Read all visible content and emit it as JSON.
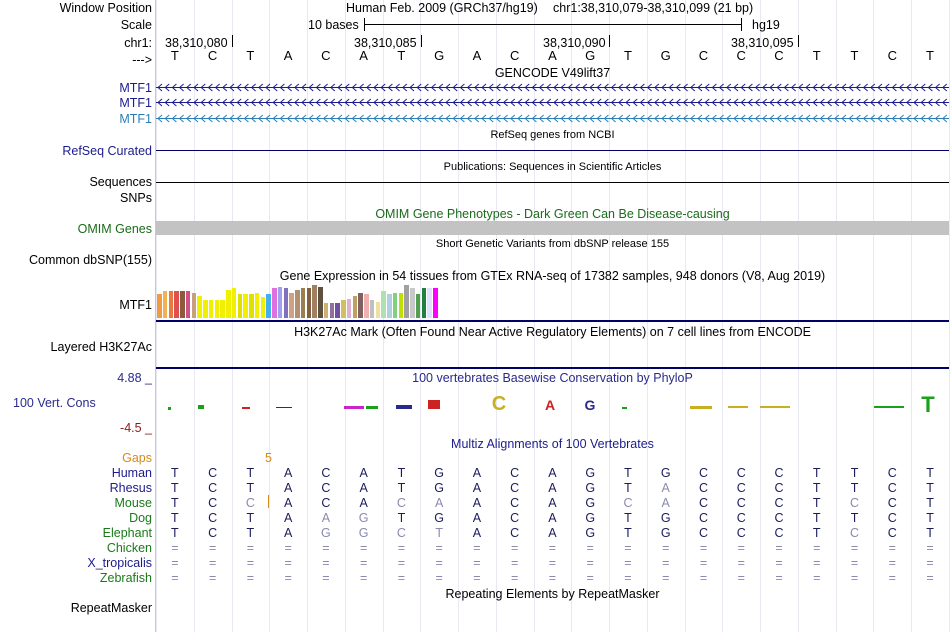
{
  "window_position": {
    "label": "Window Position",
    "assembly": "Human Feb. 2009 (GRCh37/hg19)",
    "region": "chr1:38,310,079-38,310,099 (21 bp)"
  },
  "scale": {
    "label": "Scale",
    "bases": "10 bases",
    "db": "hg19"
  },
  "chrom": {
    "label": "chr1:",
    "ticks": [
      "38,310,080",
      "38,310,085",
      "38,310,090",
      "38,310,095"
    ]
  },
  "strand_label": "--->",
  "sequence": [
    "T",
    "C",
    "T",
    "A",
    "C",
    "A",
    "T",
    "G",
    "A",
    "C",
    "A",
    "G",
    "T",
    "G",
    "C",
    "C",
    "C",
    "T",
    "T",
    "C",
    "T"
  ],
  "gencode": {
    "title": "GENCODE V49lift37",
    "tracks": [
      {
        "name": "MTF1",
        "color": "#1c1c8c"
      },
      {
        "name": "MTF1",
        "color": "#1c1c8c"
      },
      {
        "name": "MTF1",
        "color": "#2a7fb8"
      }
    ]
  },
  "refseq": {
    "title": "RefSeq genes from NCBI",
    "label": "RefSeq Curated"
  },
  "publications": {
    "title": "Publications: Sequences in Scientific Articles",
    "label": "Sequences"
  },
  "snps_label": "SNPs",
  "omim": {
    "title": "OMIM Gene Phenotypes - Dark Green Can Be Disease-causing",
    "label": "OMIM Genes"
  },
  "dbsnp": {
    "title": "Short Genetic Variants from dbSNP release 155",
    "label": "Common dbSNP(155)"
  },
  "gtex": {
    "title": "Gene Expression in 54 tissues from GTEx RNA-seq of 17382 samples, 948 donors (V8, Aug 2019)",
    "label": "MTF1",
    "values": [
      0.8,
      0.9,
      0.9,
      0.9,
      0.9,
      0.9,
      0.85,
      0.75,
      0.6,
      0.6,
      0.6,
      0.6,
      0.95,
      1.0,
      0.8,
      0.8,
      0.8,
      0.85,
      0.7,
      0.8,
      1.0,
      1.05,
      1.0,
      0.85,
      0.95,
      1.0,
      1.0,
      1.1,
      1.05,
      0.5,
      0.5,
      0.5,
      0.6,
      0.65,
      0.75,
      0.85,
      0.8,
      0.6,
      0.55,
      0.9,
      0.8,
      0.85,
      0.85,
      1.1,
      1.0,
      0.8,
      1.0,
      1.0,
      1.0
    ],
    "colors": [
      "#f29a42",
      "#f2b252",
      "#e87a40",
      "#e05050",
      "#8c5a3c",
      "#d0508c",
      "#c8a080",
      "#f0f000",
      "#f0f000",
      "#f0f000",
      "#f0f000",
      "#f0f000",
      "#f0f000",
      "#f0f000",
      "#e0e000",
      "#f0f000",
      "#e0e000",
      "#f0f000",
      "#f0f000",
      "#40b0f0",
      "#e070e0",
      "#a0a0f0",
      "#8070c0",
      "#d0a080",
      "#b09070",
      "#9a8050",
      "#806040",
      "#a08060",
      "#605040",
      "#d0b070",
      "#9070a0",
      "#7050a0",
      "#d0c060",
      "#e0b0d0",
      "#c0a060",
      "#806060",
      "#f0b0b0",
      "#c0c0c0",
      "#f0e0a0",
      "#b0e0b0",
      "#b0d0e0",
      "#80d080",
      "#c0e000",
      "#a0a0a0",
      "#c8c8c8",
      "#50a050",
      "#208040",
      "#e0e0ff",
      "#ff00ff"
    ]
  },
  "h3k27ac": {
    "title": "H3K27Ac Mark (Often Found Near Active Regulatory Elements) on 7 cell lines from ENCODE",
    "label": "Layered H3K27Ac"
  },
  "conservation": {
    "title": "100 vertebrates Basewise Conservation by PhyloP",
    "label": "100 Vert. Cons",
    "max": "4.88 _",
    "min": "-4.5 _",
    "colors": {
      "pos": "#2a2a8c",
      "max": "#2a2a8c",
      "min": "#8c1a1a"
    }
  },
  "multiz": {
    "title": "Multiz Alignments of 100 Vertebrates",
    "gaps_label": "Gaps",
    "gaps_marker": "5",
    "species": [
      {
        "name": "Human",
        "color": "#1c1c8c",
        "bases": [
          "T",
          "C",
          "T",
          "A",
          "C",
          "A",
          "T",
          "G",
          "A",
          "C",
          "A",
          "G",
          "T",
          "G",
          "C",
          "C",
          "C",
          "T",
          "T",
          "C",
          "T"
        ],
        "dim": []
      },
      {
        "name": "Rhesus",
        "color": "#1c1c8c",
        "bases": [
          "T",
          "C",
          "T",
          "A",
          "C",
          "A",
          "T",
          "G",
          "A",
          "C",
          "A",
          "G",
          "T",
          "A",
          "C",
          "C",
          "C",
          "T",
          "T",
          "C",
          "T"
        ],
        "dim": [
          13
        ]
      },
      {
        "name": "Mouse",
        "color": "#1a7a1a",
        "bases": [
          "T",
          "C",
          "C",
          "A",
          "C",
          "A",
          "C",
          "A",
          "A",
          "C",
          "A",
          "G",
          "C",
          "A",
          "C",
          "C",
          "C",
          "T",
          "C",
          "C",
          "T"
        ],
        "dim": [
          2,
          6,
          7,
          12,
          13,
          18
        ]
      },
      {
        "name": "Dog",
        "color": "#1a7a1a",
        "bases": [
          "T",
          "C",
          "T",
          "A",
          "A",
          "G",
          "T",
          "G",
          "A",
          "C",
          "A",
          "G",
          "T",
          "G",
          "C",
          "C",
          "C",
          "T",
          "T",
          "C",
          "T"
        ],
        "dim": [
          4,
          5
        ]
      },
      {
        "name": "Elephant",
        "color": "#1a7a1a",
        "bases": [
          "T",
          "C",
          "T",
          "A",
          "G",
          "G",
          "C",
          "T",
          "A",
          "C",
          "A",
          "G",
          "T",
          "G",
          "C",
          "C",
          "C",
          "T",
          "C",
          "C",
          "T"
        ],
        "dim": [
          4,
          5,
          6,
          7,
          18
        ]
      },
      {
        "name": "Chicken",
        "color": "#1a7a1a",
        "bases": [
          "=",
          "=",
          "=",
          "=",
          "=",
          "=",
          "=",
          "=",
          "=",
          "=",
          "=",
          "=",
          "=",
          "=",
          "=",
          "=",
          "=",
          "=",
          "=",
          "=",
          "="
        ],
        "dim": "all"
      },
      {
        "name": "X_tropicalis",
        "color": "#1c1c8c",
        "bases": [
          "=",
          "=",
          "=",
          "=",
          "=",
          "=",
          "=",
          "=",
          "=",
          "=",
          "=",
          "=",
          "=",
          "=",
          "=",
          "=",
          "=",
          "=",
          "=",
          "=",
          "="
        ],
        "dim": "all"
      },
      {
        "name": "Zebrafish",
        "color": "#1a7a1a",
        "bases": [
          "=",
          "=",
          "=",
          "=",
          "=",
          "=",
          "=",
          "=",
          "=",
          "=",
          "=",
          "=",
          "=",
          "=",
          "=",
          "=",
          "=",
          "=",
          "=",
          "=",
          "="
        ],
        "dim": "all"
      }
    ]
  },
  "repeatmasker": {
    "title": "Repeating Elements by RepeatMasker",
    "label": "RepeatMasker"
  }
}
